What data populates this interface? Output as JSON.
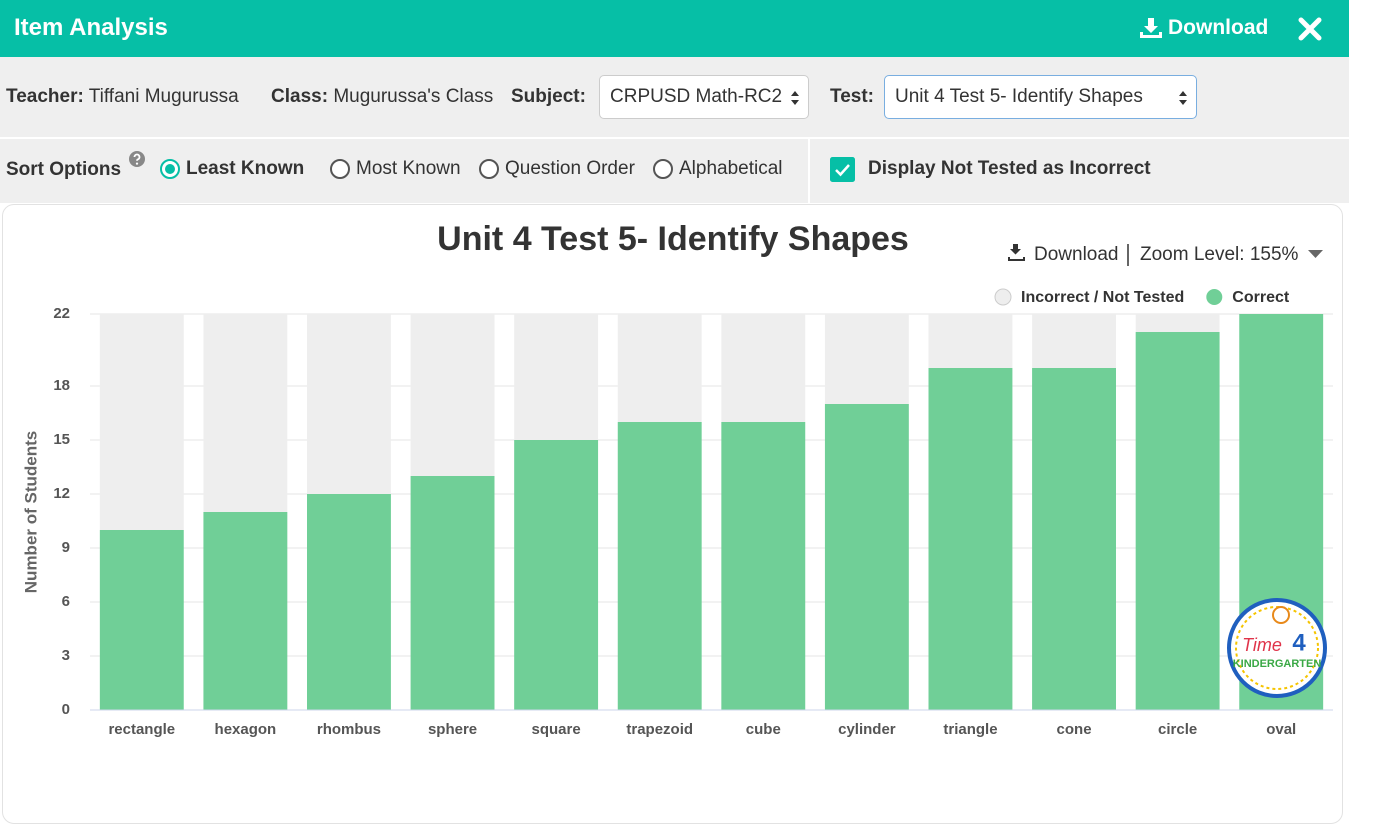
{
  "header": {
    "title": "Item Analysis",
    "download": "Download"
  },
  "filters": {
    "teacher_label": "Teacher:",
    "teacher": "Tiffani Mugurussa",
    "class_label": "Class:",
    "class": "Mugurussa's Class",
    "subject_label": "Subject:",
    "subject": "CRPUSD Math-RC2",
    "test_label": "Test:",
    "test": "Unit 4 Test 5- Identify Shapes"
  },
  "sort": {
    "label": "Sort Options",
    "options": [
      "Least Known",
      "Most Known",
      "Question Order",
      "Alphabetical"
    ],
    "selected": 0
  },
  "display_not_tested": {
    "label": "Display Not Tested as Incorrect",
    "checked": true
  },
  "chart_toolbar": {
    "download": "Download",
    "zoom": "Zoom Level: 155%"
  },
  "logo": [
    "Time",
    "4",
    "KINDERGARTEN"
  ],
  "chart_data": {
    "type": "bar",
    "stacked": true,
    "title": "Unit 4 Test 5- Identify Shapes",
    "y_label": "Number of Students",
    "categories": [
      "rectangle",
      "hexagon",
      "rhombus",
      "sphere",
      "square",
      "trapezoid",
      "cube",
      "cylinder",
      "triangle",
      "cone",
      "circle",
      "oval"
    ],
    "series": [
      {
        "name": "Incorrect / Not Tested",
        "color": "#eeeeee",
        "values": [
          12,
          11,
          10,
          9,
          7,
          6,
          6,
          5,
          3,
          3,
          1,
          0
        ]
      },
      {
        "name": "Correct",
        "color": "#70cf97",
        "values": [
          10,
          11,
          12,
          13,
          15,
          16,
          16,
          17,
          19,
          19,
          21,
          22
        ]
      }
    ],
    "ylim": [
      0,
      22
    ],
    "yticks": [
      0,
      3,
      6,
      9,
      12,
      15,
      18,
      22
    ],
    "grid": true,
    "legend": "top-right"
  }
}
